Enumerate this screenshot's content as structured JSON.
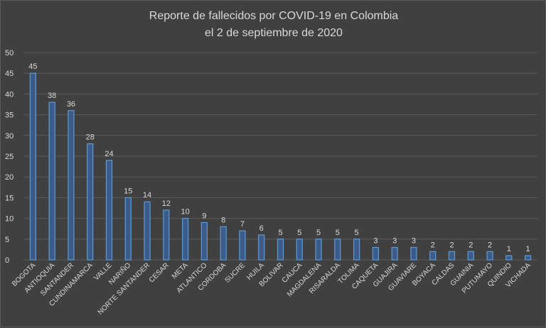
{
  "chart_data": {
    "type": "bar",
    "title_line1": "Reporte de fallecidos por COVID-19 en Colombia",
    "title_line2": "el 2 de septiembre de 2020",
    "categories": [
      "BOGOTA",
      "ANTIOQUIA",
      "SANTANDER",
      "CUNDINAMARCA",
      "VALLE",
      "NARIÑO",
      "NORTE SANTANDER",
      "CESAR",
      "META",
      "ATLANTICO",
      "CORDOBA",
      "SUCRE",
      "HUILA",
      "BOLIVAR",
      "CAUCA",
      "MAGDALENA",
      "RISARALDA",
      "TOLIMA",
      "CAQUETA",
      "GUAJIRA",
      "GUAVIARE",
      "BOYACA",
      "CALDAS",
      "GUAINIA",
      "PUTUMAYO",
      "QUINDIO",
      "VICHADA"
    ],
    "values": [
      45,
      38,
      36,
      28,
      24,
      15,
      14,
      12,
      10,
      9,
      8,
      7,
      6,
      5,
      5,
      5,
      5,
      5,
      3,
      3,
      3,
      2,
      2,
      2,
      2,
      1,
      1
    ],
    "yticks": [
      0,
      5,
      10,
      15,
      20,
      25,
      30,
      35,
      40,
      45,
      50
    ],
    "ylim": [
      0,
      50
    ],
    "grid": true,
    "colors": {
      "background": "#404040",
      "bar_fill": "#3d5b8a",
      "bar_stroke": "#5b9bd5",
      "grid": "#5a5a5a",
      "text": "#d9d9d9"
    }
  }
}
